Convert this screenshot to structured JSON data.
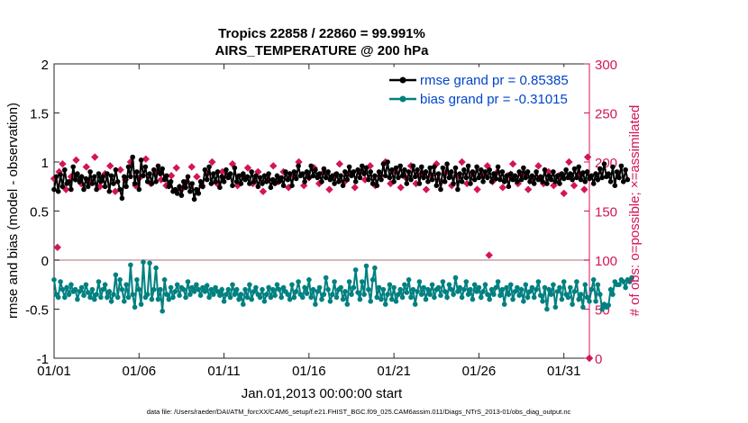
{
  "chart_data": {
    "type": "line",
    "title": "Tropics 22858 / 22860 = 99.991%",
    "subtitle": "AIRS_TEMPERATURE @ 200 hPa",
    "xlabel": "Jan.01,2013 00:00:00 start",
    "ylabel": "rmse and bias (model - observation)",
    "y2label": "# of obs: o=possible; ×=assimilated",
    "footnote": "data file: /Users/raeder/DAI/ATM_forcXX/CAM6_setup/f.e21.FHIST_BGC.f09_025.CAM6assim.011/Diags_NTrS_2013-01/obs_diag_output.nc",
    "xlim": [
      0,
      31.5
    ],
    "ylim": [
      -1,
      2
    ],
    "y2lim": [
      0,
      300
    ],
    "xticks": [
      0,
      5,
      10,
      15,
      20,
      25,
      30
    ],
    "xtick_labels": [
      "01/01",
      "01/06",
      "01/11",
      "01/16",
      "01/21",
      "01/26",
      "01/31"
    ],
    "yticks": [
      -1,
      -0.5,
      0,
      0.5,
      1,
      1.5,
      2
    ],
    "ytick_labels": [
      "-1",
      "-0.5",
      "0",
      "0.5",
      "1",
      "1.5",
      "2"
    ],
    "y2ticks": [
      0,
      50,
      100,
      150,
      200,
      250,
      300
    ],
    "y2tick_labels": [
      "0",
      "50",
      "100",
      "150",
      "200",
      "250",
      "300"
    ],
    "legend_position": "top-right",
    "series": [
      {
        "name": "rmse grand pr = 0.85385",
        "color": "#000000",
        "marker": "circle",
        "axis": "left",
        "values": [
          0.72,
          0.85,
          0.7,
          0.87,
          0.75,
          0.92,
          0.78,
          0.8,
          0.72,
          0.95,
          0.82,
          0.88,
          0.8,
          0.85,
          0.72,
          0.83,
          0.75,
          0.9,
          0.78,
          0.85,
          0.72,
          0.88,
          0.8,
          0.85,
          0.75,
          0.88,
          0.7,
          0.86,
          0.78,
          0.92,
          0.8,
          0.72,
          0.63,
          0.85,
          0.75,
          0.95,
          0.85,
          1.05,
          0.78,
          0.9,
          0.72,
          1.02,
          0.86,
          0.95,
          0.8,
          0.88,
          0.78,
          0.92,
          0.8,
          0.96,
          0.88,
          0.93,
          0.82,
          0.86,
          0.75,
          0.8,
          0.7,
          0.72,
          0.68,
          0.75,
          0.66,
          0.8,
          0.74,
          0.85,
          0.7,
          0.78,
          0.62,
          0.72,
          0.68,
          0.8,
          0.75,
          0.92,
          0.82,
          0.95,
          0.78,
          0.88,
          0.8,
          0.9,
          0.74,
          0.85,
          0.8,
          0.92,
          0.84,
          0.88,
          0.76,
          0.94,
          0.8,
          0.86,
          0.78,
          0.88,
          0.82,
          0.85,
          0.78,
          0.9,
          0.8,
          0.86,
          0.75,
          0.84,
          0.78,
          0.86,
          0.8,
          0.88,
          0.74,
          0.82,
          0.78,
          0.86,
          0.8,
          0.84,
          0.76,
          0.9,
          0.82,
          0.88,
          0.76,
          0.9,
          0.83,
          0.96,
          0.86,
          0.88,
          0.8,
          0.9,
          0.84,
          0.96,
          0.86,
          0.92,
          0.84,
          0.88,
          0.8,
          0.93,
          0.84,
          0.9,
          0.82,
          0.86,
          0.78,
          0.88,
          0.8,
          0.86,
          0.76,
          0.9,
          0.82,
          0.95,
          0.86,
          0.9,
          0.8,
          0.92,
          0.84,
          0.96,
          0.88,
          0.94,
          0.82,
          0.9,
          0.78,
          0.86,
          0.76,
          0.9,
          0.82,
          0.98,
          0.86,
          1.0,
          0.84,
          0.92,
          0.8,
          0.94,
          0.84,
          0.96,
          0.86,
          0.92,
          0.78,
          0.9,
          0.82,
          0.96,
          0.85,
          0.92,
          0.78,
          0.95,
          0.84,
          0.9,
          0.8,
          0.94,
          0.82,
          0.95,
          0.76,
          0.88,
          0.72,
          0.94,
          0.8,
          0.98,
          0.84,
          0.9,
          0.78,
          0.94,
          0.72,
          0.88,
          0.8,
          0.92,
          0.84,
          0.96,
          0.78,
          0.9,
          0.82,
          0.95,
          0.84,
          0.92,
          0.8,
          0.9,
          0.84,
          0.92,
          0.8,
          0.88,
          0.83,
          0.95,
          0.82,
          0.9,
          0.8,
          0.86,
          0.75,
          0.88,
          0.82,
          0.86,
          0.8,
          0.9,
          0.82,
          0.94,
          0.84,
          0.9,
          0.8,
          0.86,
          0.78,
          0.9,
          0.82,
          0.85,
          0.8,
          0.92,
          0.78,
          0.86,
          0.82,
          0.9,
          0.8,
          0.86,
          0.78,
          0.88,
          0.83,
          0.92,
          0.84,
          0.88,
          0.82,
          0.93,
          0.84,
          0.95,
          0.82,
          0.89,
          0.8,
          0.9,
          0.83,
          0.86,
          0.78,
          0.88,
          0.82,
          0.93,
          0.84,
          0.98,
          0.85,
          0.88,
          0.8,
          0.95,
          0.76,
          0.9,
          0.84,
          0.96,
          0.8,
          0.92,
          0.82
        ],
        "x_step": 0.125
      },
      {
        "name": "bias grand pr = -0.31015",
        "color": "#008080",
        "marker": "circle",
        "axis": "left",
        "values": [
          -0.2,
          -0.35,
          -0.38,
          -0.22,
          -0.3,
          -0.38,
          -0.28,
          -0.35,
          -0.25,
          -0.32,
          -0.3,
          -0.4,
          -0.32,
          -0.28,
          -0.36,
          -0.25,
          -0.33,
          -0.38,
          -0.3,
          -0.4,
          -0.35,
          -0.22,
          -0.38,
          -0.3,
          -0.25,
          -0.38,
          -0.32,
          -0.42,
          -0.35,
          -0.15,
          -0.38,
          -0.2,
          -0.3,
          -0.42,
          -0.25,
          -0.38,
          -0.05,
          -0.35,
          -0.48,
          -0.2,
          -0.3,
          -0.45,
          -0.02,
          -0.38,
          -0.35,
          -0.03,
          -0.4,
          -0.3,
          -0.08,
          -0.4,
          -0.3,
          -0.52,
          -0.2,
          -0.35,
          -0.4,
          -0.28,
          -0.38,
          -0.32,
          -0.25,
          -0.36,
          -0.28,
          -0.3,
          -0.38,
          -0.22,
          -0.35,
          -0.28,
          -0.32,
          -0.25,
          -0.3,
          -0.36,
          -0.28,
          -0.32,
          -0.26,
          -0.38,
          -0.3,
          -0.35,
          -0.28,
          -0.32,
          -0.36,
          -0.3,
          -0.42,
          -0.35,
          -0.3,
          -0.38,
          -0.25,
          -0.35,
          -0.3,
          -0.4,
          -0.35,
          -0.45,
          -0.3,
          -0.38,
          -0.25,
          -0.4,
          -0.32,
          -0.28,
          -0.35,
          -0.38,
          -0.3,
          -0.42,
          -0.35,
          -0.28,
          -0.38,
          -0.3,
          -0.36,
          -0.25,
          -0.3,
          -0.38,
          -0.28,
          -0.32,
          -0.35,
          -0.4,
          -0.25,
          -0.38,
          -0.32,
          -0.22,
          -0.35,
          -0.38,
          -0.28,
          -0.34,
          -0.2,
          -0.38,
          -0.3,
          -0.45,
          -0.32,
          -0.28,
          -0.4,
          -0.35,
          -0.18,
          -0.3,
          -0.42,
          -0.35,
          -0.22,
          -0.38,
          -0.3,
          -0.28,
          -0.4,
          -0.32,
          -0.45,
          -0.22,
          -0.35,
          -0.28,
          -0.1,
          -0.33,
          -0.4,
          -0.22,
          -0.35,
          -0.06,
          -0.3,
          -0.42,
          -0.2,
          -0.08,
          -0.38,
          -0.28,
          -0.4,
          -0.3,
          -0.45,
          -0.35,
          -0.25,
          -0.4,
          -0.28,
          -0.42,
          -0.35,
          -0.3,
          -0.38,
          -0.25,
          -0.33,
          -0.2,
          -0.38,
          -0.3,
          -0.45,
          -0.32,
          -0.22,
          -0.35,
          -0.28,
          -0.4,
          -0.3,
          -0.35,
          -0.25,
          -0.38,
          -0.3,
          -0.28,
          -0.36,
          -0.22,
          -0.32,
          -0.38,
          -0.25,
          -0.3,
          -0.35,
          -0.18,
          -0.32,
          -0.28,
          -0.38,
          -0.3,
          -0.22,
          -0.35,
          -0.3,
          -0.4,
          -0.25,
          -0.32,
          -0.28,
          -0.38,
          -0.32,
          -0.25,
          -0.35,
          -0.4,
          -0.3,
          -0.35,
          -0.28,
          -0.22,
          -0.36,
          -0.3,
          -0.45,
          -0.28,
          -0.35,
          -0.25,
          -0.4,
          -0.32,
          -0.28,
          -0.36,
          -0.3,
          -0.42,
          -0.25,
          -0.38,
          -0.32,
          -0.28,
          -0.38,
          -0.3,
          -0.22,
          -0.36,
          -0.42,
          -0.28,
          -0.5,
          -0.3,
          -0.35,
          -0.25,
          -0.48,
          -0.32,
          -0.28,
          -0.4,
          -0.22,
          -0.35,
          -0.38,
          -0.28,
          -0.45,
          -0.32,
          -0.22,
          -0.4,
          -0.35,
          -0.48,
          -0.25,
          -0.38,
          -0.42,
          -0.3,
          -0.2,
          -0.42,
          -0.25,
          -0.35,
          -0.5,
          -0.45,
          -0.48,
          -0.46,
          -0.3,
          -0.35,
          -0.22,
          -0.25,
          -0.25,
          -0.2,
          -0.22,
          -0.28,
          -0.2,
          -0.22,
          -0.18
        ],
        "x_step": 0.125
      },
      {
        "name": "# possible / assimilated",
        "color": "#d4145a",
        "marker": "plus",
        "axis": "right",
        "points": [
          [
            0.2,
            113
          ],
          [
            25.6,
            105
          ],
          [
            31.5,
            0
          ],
          [
            0.0,
            183
          ],
          [
            0.3,
            190
          ],
          [
            0.5,
            198
          ],
          [
            0.7,
            172
          ],
          [
            1.0,
            185
          ],
          [
            1.3,
            202
          ],
          [
            1.6,
            178
          ],
          [
            1.9,
            195
          ],
          [
            2.1,
            180
          ],
          [
            2.4,
            205
          ],
          [
            2.7,
            175
          ],
          [
            3.0,
            188
          ],
          [
            3.3,
            196
          ],
          [
            3.6,
            170
          ],
          [
            3.9,
            192
          ],
          [
            4.2,
            182
          ],
          [
            4.5,
            200
          ],
          [
            4.8,
            176
          ],
          [
            5.1,
            185
          ],
          [
            5.4,
            203
          ],
          [
            5.7,
            178
          ],
          [
            6.0,
            190
          ],
          [
            6.3,
            182
          ],
          [
            6.6,
            176
          ],
          [
            6.9,
            186
          ],
          [
            7.2,
            194
          ],
          [
            7.5,
            172
          ],
          [
            7.8,
            180
          ],
          [
            8.1,
            195
          ],
          [
            8.4,
            185
          ],
          [
            8.7,
            176
          ],
          [
            9.0,
            188
          ],
          [
            9.3,
            200
          ],
          [
            9.6,
            178
          ],
          [
            9.9,
            190
          ],
          [
            10.2,
            185
          ],
          [
            10.5,
            198
          ],
          [
            10.8,
            176
          ],
          [
            11.1,
            186
          ],
          [
            11.4,
            194
          ],
          [
            11.7,
            178
          ],
          [
            12.0,
            190
          ],
          [
            12.3,
            170
          ],
          [
            12.6,
            182
          ],
          [
            12.9,
            196
          ],
          [
            13.2,
            180
          ],
          [
            13.5,
            190
          ],
          [
            13.8,
            174
          ],
          [
            14.1,
            186
          ],
          [
            14.4,
            200
          ],
          [
            14.7,
            176
          ],
          [
            15.0,
            184
          ],
          [
            15.3,
            194
          ],
          [
            15.6,
            178
          ],
          [
            15.9,
            190
          ],
          [
            16.2,
            172
          ],
          [
            16.5,
            186
          ],
          [
            16.8,
            198
          ],
          [
            17.1,
            180
          ],
          [
            17.4,
            188
          ],
          [
            17.7,
            174
          ],
          [
            18.0,
            190
          ],
          [
            18.3,
            182
          ],
          [
            18.6,
            196
          ],
          [
            18.9,
            176
          ],
          [
            19.2,
            186
          ],
          [
            19.5,
            200
          ],
          [
            19.8,
            178
          ],
          [
            20.1,
            190
          ],
          [
            20.4,
            174
          ],
          [
            20.7,
            184
          ],
          [
            21.0,
            196
          ],
          [
            21.3,
            178
          ],
          [
            21.6,
            188
          ],
          [
            21.9,
            172
          ],
          [
            22.2,
            186
          ],
          [
            22.5,
            198
          ],
          [
            22.8,
            180
          ],
          [
            23.1,
            190
          ],
          [
            23.4,
            176
          ],
          [
            23.7,
            186
          ],
          [
            24.0,
            200
          ],
          [
            24.3,
            178
          ],
          [
            24.6,
            188
          ],
          [
            24.9,
            172
          ],
          [
            25.2,
            186
          ],
          [
            25.5,
            196
          ],
          [
            25.8,
            180
          ],
          [
            26.1,
            190
          ],
          [
            26.4,
            174
          ],
          [
            26.7,
            186
          ],
          [
            27.0,
            198
          ],
          [
            27.3,
            178
          ],
          [
            27.6,
            188
          ],
          [
            27.9,
            172
          ],
          [
            28.2,
            184
          ],
          [
            28.5,
            196
          ],
          [
            28.8,
            178
          ],
          [
            29.1,
            190
          ],
          [
            29.4,
            176
          ],
          [
            29.7,
            186
          ],
          [
            30.0,
            168
          ],
          [
            30.3,
            200
          ],
          [
            30.6,
            176
          ],
          [
            30.9,
            188
          ],
          [
            31.2,
            172
          ],
          [
            31.4,
            205
          ]
        ]
      }
    ],
    "zero_line": {
      "value": 0,
      "color": "#c8a0a0"
    },
    "legend": [
      {
        "label": "rmse grand pr = 0.85385",
        "color": "#000000",
        "text_color": "#0044cc"
      },
      {
        "label": "bias grand pr = -0.31015",
        "color": "#008080",
        "text_color": "#0044cc"
      }
    ]
  }
}
